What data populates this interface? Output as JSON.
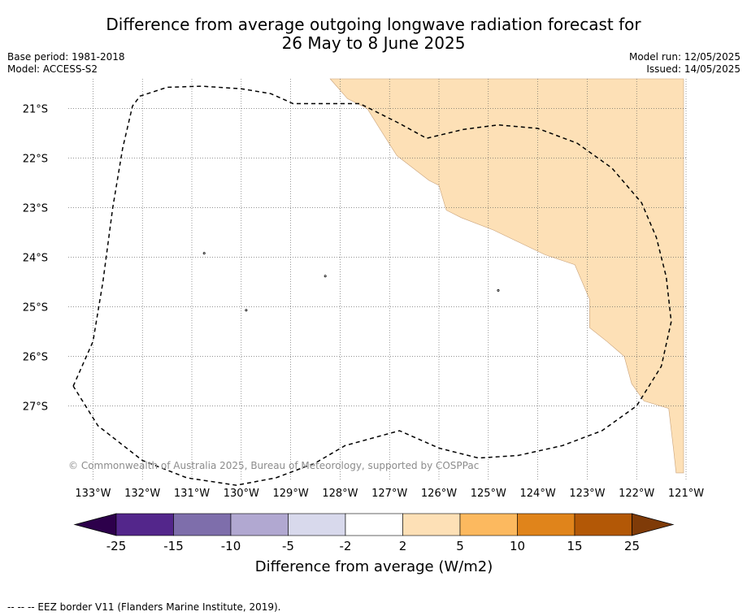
{
  "title_line1": "Difference from average outgoing longwave radiation forecast for",
  "title_line2": "26 May to 8 June 2025",
  "base_period": "Base period: 1981-2018",
  "model": "Model: ACCESS-S2",
  "model_run": "Model run: 12/05/2025",
  "issued": "Issued: 14/05/2025",
  "copyright": "© Commonwealth of Australia 2025, Bureau of Meteorology, supported by COSPPac",
  "footer": "-- -- -- EEZ border V11 (Flanders Marine Institute, 2019).",
  "map": {
    "lon_range": [
      -133.5,
      -121
    ],
    "lat_range": [
      -28.5,
      -20.4
    ],
    "lon_ticks": [
      {
        "value": -133,
        "label": "133°W"
      },
      {
        "value": -132,
        "label": "132°W"
      },
      {
        "value": -131,
        "label": "131°W"
      },
      {
        "value": -130,
        "label": "130°W"
      },
      {
        "value": -129,
        "label": "129°W"
      },
      {
        "value": -128,
        "label": "128°W"
      },
      {
        "value": -127,
        "label": "127°W"
      },
      {
        "value": -126,
        "label": "126°W"
      },
      {
        "value": -125,
        "label": "125°W"
      },
      {
        "value": -124,
        "label": "124°W"
      },
      {
        "value": -123,
        "label": "123°W"
      },
      {
        "value": -122,
        "label": "122°W"
      },
      {
        "value": -121,
        "label": "121°W"
      }
    ],
    "lat_ticks": [
      {
        "value": -21,
        "label": "21°S"
      },
      {
        "value": -22,
        "label": "22°S"
      },
      {
        "value": -23,
        "label": "23°S"
      },
      {
        "value": -24,
        "label": "24°S"
      },
      {
        "value": -25,
        "label": "25°S"
      },
      {
        "value": -26,
        "label": "26°S"
      },
      {
        "value": -27,
        "label": "27°S"
      }
    ],
    "anomaly_region": {
      "category": "2 to 5",
      "color": "#fde0b6",
      "boundary": [
        [
          -126.7,
          -20.4
        ],
        [
          -121.05,
          -20.4
        ],
        [
          -121.05,
          -28.35
        ],
        [
          -121.2,
          -28.35
        ],
        [
          -121.25,
          -27.9
        ],
        [
          -121.35,
          -27.05
        ],
        [
          -121.85,
          -26.9
        ],
        [
          -122.1,
          -26.55
        ],
        [
          -122.25,
          -26.0
        ],
        [
          -122.6,
          -25.7
        ],
        [
          -122.95,
          -25.42
        ],
        [
          -122.95,
          -24.85
        ],
        [
          -123.25,
          -24.15
        ],
        [
          -123.85,
          -23.95
        ],
        [
          -124.9,
          -23.45
        ],
        [
          -125.55,
          -23.2
        ],
        [
          -125.85,
          -23.05
        ],
        [
          -126.0,
          -22.55
        ],
        [
          -126.2,
          -22.45
        ],
        [
          -126.85,
          -21.95
        ],
        [
          -127.2,
          -21.4
        ],
        [
          -127.45,
          -21.0
        ],
        [
          -127.85,
          -20.8
        ],
        [
          -128.2,
          -20.4
        ]
      ]
    },
    "eez_border": {
      "color": "#000000",
      "points": [
        [
          -133.4,
          -26.6
        ],
        [
          -133.0,
          -25.7
        ],
        [
          -132.8,
          -24.5
        ],
        [
          -132.6,
          -23.0
        ],
        [
          -132.4,
          -21.8
        ],
        [
          -132.2,
          -20.95
        ],
        [
          -132.05,
          -20.75
        ],
        [
          -131.5,
          -20.57
        ],
        [
          -130.8,
          -20.55
        ],
        [
          -130.0,
          -20.6
        ],
        [
          -129.4,
          -20.7
        ],
        [
          -128.95,
          -20.9
        ],
        [
          -128.3,
          -20.9
        ],
        [
          -127.6,
          -20.9
        ],
        [
          -126.8,
          -21.3
        ],
        [
          -126.25,
          -21.6
        ],
        [
          -125.5,
          -21.42
        ],
        [
          -124.8,
          -21.33
        ],
        [
          -124.0,
          -21.4
        ],
        [
          -123.2,
          -21.7
        ],
        [
          -122.5,
          -22.2
        ],
        [
          -121.9,
          -22.9
        ],
        [
          -121.6,
          -23.6
        ],
        [
          -121.4,
          -24.4
        ],
        [
          -121.3,
          -25.3
        ],
        [
          -121.5,
          -26.2
        ],
        [
          -122.0,
          -27.0
        ],
        [
          -122.7,
          -27.5
        ],
        [
          -123.5,
          -27.8
        ],
        [
          -124.4,
          -28.0
        ],
        [
          -125.2,
          -28.05
        ],
        [
          -126.0,
          -27.85
        ],
        [
          -126.8,
          -27.5
        ],
        [
          -127.9,
          -27.8
        ],
        [
          -128.5,
          -28.15
        ],
        [
          -129.3,
          -28.45
        ],
        [
          -130.1,
          -28.6
        ],
        [
          -131.1,
          -28.45
        ],
        [
          -132.0,
          -28.1
        ],
        [
          -132.9,
          -27.4
        ],
        [
          -133.4,
          -26.6
        ]
      ]
    },
    "island_markers": [
      [
        -130.75,
        -23.92
      ],
      [
        -128.3,
        -24.38
      ],
      [
        -129.9,
        -25.07
      ],
      [
        -124.8,
        -24.67
      ]
    ]
  },
  "colorbar": {
    "label": "Difference from average (W/m2)",
    "tick_labels": [
      "-25",
      "-15",
      "-10",
      "-5",
      "-2",
      "2",
      "5",
      "10",
      "15",
      "25"
    ],
    "segment_colors": [
      "#53268b",
      "#7e6eab",
      "#b1a8d1",
      "#d8d9ec",
      "#ffffff",
      "#fde0b6",
      "#fcb95f",
      "#e0841b",
      "#b35806"
    ],
    "extend_low_color": "#2d004b",
    "extend_high_color": "#7f3b08"
  }
}
